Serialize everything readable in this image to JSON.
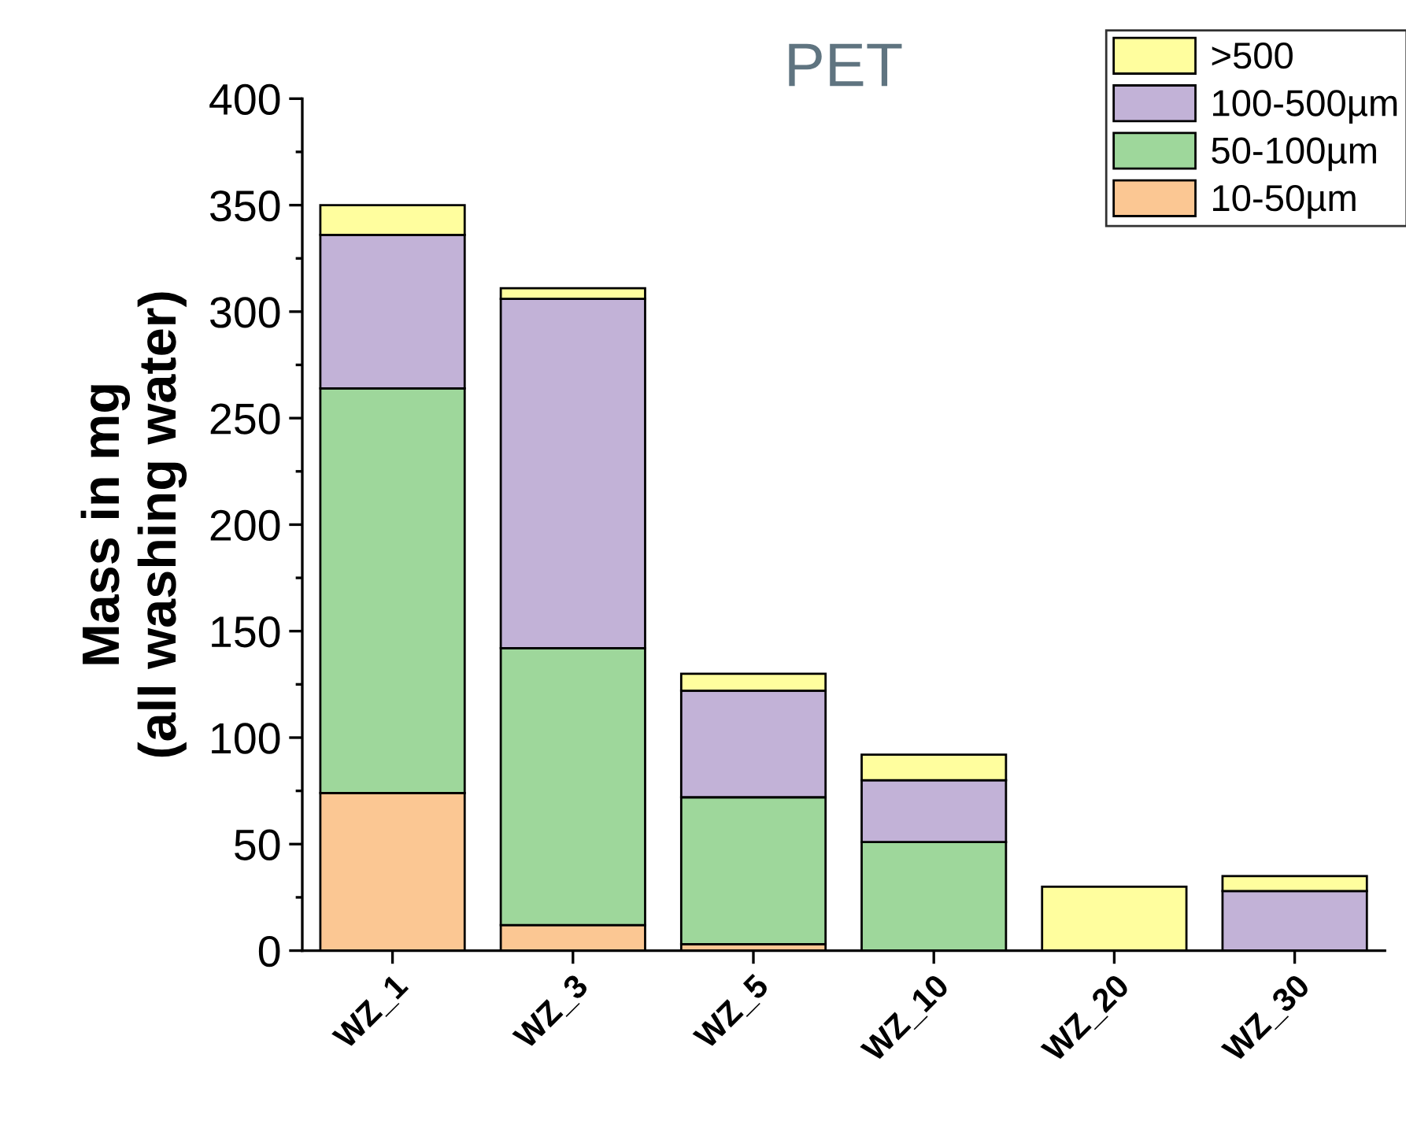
{
  "chart_data": {
    "type": "bar",
    "title": "PET",
    "ylabel": "Mass in mg\n(all washing water)",
    "categories": [
      "WZ_1",
      "WZ_3",
      "WZ_5",
      "WZ_10",
      "WZ_20",
      "WZ_30"
    ],
    "stacked": true,
    "series": [
      {
        "name": "10-50µm",
        "color": "#fbc793",
        "values": [
          74,
          12,
          3,
          0,
          0,
          0
        ]
      },
      {
        "name": "50-100µm",
        "color": "#9ed79b",
        "values": [
          190,
          130,
          69,
          51,
          0,
          0
        ]
      },
      {
        "name": "100-500µm",
        "color": "#c2b2d7",
        "values": [
          72,
          164,
          50,
          29,
          0,
          28
        ]
      },
      {
        "name": ">500",
        "color": "#fffe9e",
        "values": [
          14,
          5,
          8,
          12,
          30,
          7
        ]
      }
    ],
    "ylim": [
      0,
      400
    ],
    "yticks": [
      0,
      50,
      100,
      150,
      200,
      250,
      300,
      350,
      400
    ],
    "legend": "top right",
    "grid": false
  }
}
